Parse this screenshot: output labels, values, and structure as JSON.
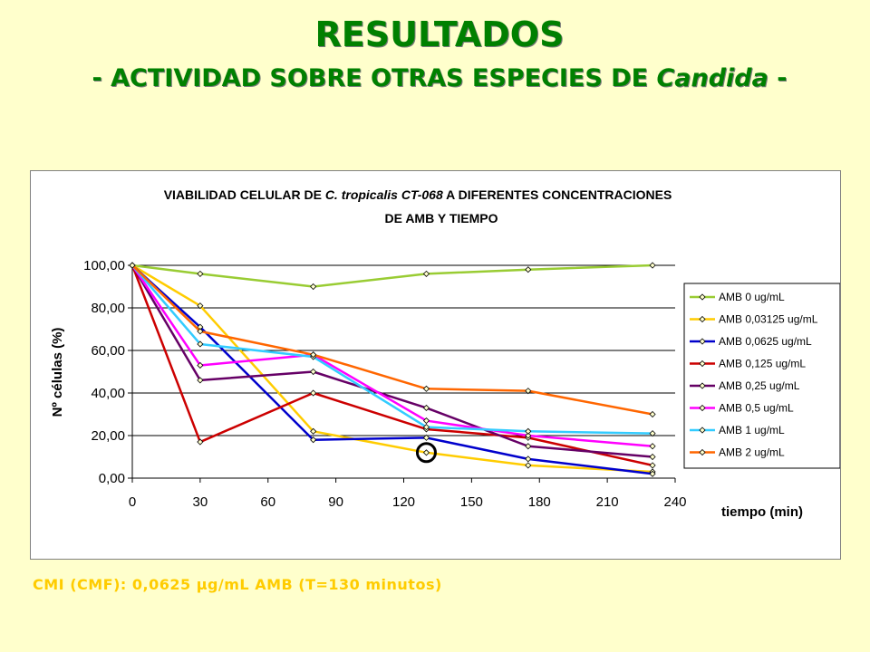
{
  "slide": {
    "title": "RESULTADOS",
    "subtitle_prefix": "- ACTIVIDAD SOBRE OTRAS ESPECIES DE ",
    "subtitle_italic": "Candida",
    "subtitle_suffix": " -",
    "footnote": "CMI (CMF): 0,0625 µg/mL AMB (T=130 minutos)"
  },
  "chart_data": {
    "type": "line",
    "title_line1_prefix": "VIABILIDAD CELULAR DE ",
    "title_line1_italic": "C. tropicalis CT-068",
    "title_line1_suffix": " A DIFERENTES CONCENTRACIONES",
    "title_line2": "DE AMB Y TIEMPO",
    "xlabel": "tiempo (min)",
    "ylabel": "Nº células (%)",
    "xlim": [
      0,
      240
    ],
    "ylim": [
      0,
      100
    ],
    "x_ticks": [
      0,
      30,
      60,
      90,
      120,
      150,
      180,
      210,
      240
    ],
    "y_ticks": [
      0,
      20,
      40,
      60,
      80,
      100
    ],
    "y_tick_labels": [
      "0,00",
      "20,00",
      "40,00",
      "60,00",
      "80,00",
      "100,00"
    ],
    "grid": "horizontal",
    "legend_position": "right",
    "x": [
      0,
      30,
      80,
      130,
      175,
      230
    ],
    "series": [
      {
        "name": "AMB 0 ug/mL",
        "color": "#99cc33",
        "values": [
          100,
          96,
          90,
          96,
          98,
          100
        ]
      },
      {
        "name": "AMB 0,03125 ug/mL",
        "color": "#ffcc00",
        "values": [
          100,
          81,
          22,
          12,
          6,
          3
        ]
      },
      {
        "name": "AMB 0,0625 ug/mL",
        "color": "#0000cc",
        "values": [
          100,
          71,
          18,
          19,
          9,
          2
        ]
      },
      {
        "name": "AMB 0,125 ug/mL",
        "color": "#cc0000",
        "values": [
          100,
          17,
          40,
          23,
          19,
          6
        ]
      },
      {
        "name": "AMB 0,25 ug/mL",
        "color": "#660066",
        "values": [
          100,
          46,
          50,
          33,
          15,
          10
        ]
      },
      {
        "name": "AMB 0,5 ug/mL",
        "color": "#ff00ff",
        "values": [
          100,
          53,
          58,
          27,
          20,
          15
        ]
      },
      {
        "name": "AMB 1 ug/mL",
        "color": "#33ccff",
        "values": [
          100,
          63,
          57,
          24,
          22,
          21
        ]
      },
      {
        "name": "AMB 2 ug/mL",
        "color": "#ff6600",
        "values": [
          100,
          69,
          58,
          42,
          41,
          30
        ]
      }
    ],
    "annotation": {
      "type": "circle",
      "x": 130,
      "y": 12
    }
  }
}
